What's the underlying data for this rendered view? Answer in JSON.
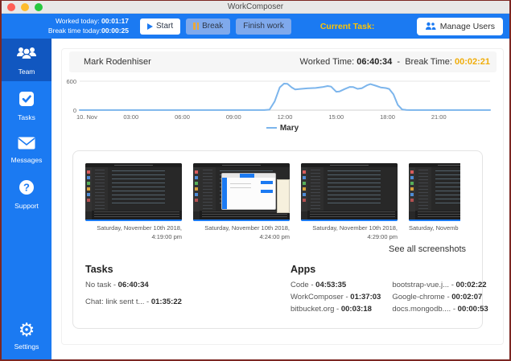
{
  "window": {
    "title": "WorkComposer"
  },
  "toolbar": {
    "worked_today_label": "Worked today:",
    "worked_today_value": "00:01:17",
    "break_today_label": "Break time today:",
    "break_today_value": "00:00:25",
    "start_label": "Start",
    "break_label": "Break",
    "finish_label": "Finish work",
    "current_task_label": "Current Task:",
    "manage_users_label": "Manage Users"
  },
  "sidebar": {
    "items": [
      {
        "label": "Team",
        "active": true
      },
      {
        "label": "Tasks",
        "active": false
      },
      {
        "label": "Messages",
        "active": false
      },
      {
        "label": "Support",
        "active": false
      }
    ],
    "settings_label": "Settings"
  },
  "user_header": {
    "name": "Mark Rodenhiser",
    "worked_label": "Worked Time:",
    "worked_value": "06:40:34",
    "dash": "-",
    "break_label": "Break Time:",
    "break_value": "00:02:21"
  },
  "chart_data": {
    "type": "line",
    "title": "",
    "xlabel": "",
    "ylabel": "",
    "ylim": [
      0,
      600
    ],
    "x_range_hours": [
      0,
      24
    ],
    "grid": "horizontal-only",
    "legend": "Mary",
    "legend_position": "bottom-center",
    "y_ticks": [
      {
        "v": 0,
        "label": "0"
      },
      {
        "v": 600,
        "label": "600"
      }
    ],
    "x_ticks": [
      {
        "hour": 0,
        "label": "10. Nov"
      },
      {
        "hour": 3,
        "label": "03:00"
      },
      {
        "hour": 6,
        "label": "06:00"
      },
      {
        "hour": 9,
        "label": "09:00"
      },
      {
        "hour": 12,
        "label": "12:00"
      },
      {
        "hour": 15,
        "label": "15:00"
      },
      {
        "hour": 18,
        "label": "18:00"
      },
      {
        "hour": 21,
        "label": "21:00"
      }
    ],
    "series": [
      {
        "name": "Mary",
        "color": "#7cb5ec",
        "points": [
          [
            0,
            2
          ],
          [
            1,
            2
          ],
          [
            2,
            2
          ],
          [
            3,
            2
          ],
          [
            4,
            2
          ],
          [
            5,
            2
          ],
          [
            6,
            2
          ],
          [
            7,
            2
          ],
          [
            8,
            2
          ],
          [
            9,
            2
          ],
          [
            10,
            2
          ],
          [
            10.8,
            2
          ],
          [
            11.1,
            10
          ],
          [
            11.4,
            180
          ],
          [
            11.7,
            470
          ],
          [
            11.95,
            550
          ],
          [
            12.15,
            545
          ],
          [
            12.4,
            470
          ],
          [
            12.6,
            428
          ],
          [
            12.9,
            440
          ],
          [
            13.3,
            452
          ],
          [
            13.8,
            460
          ],
          [
            14.2,
            478
          ],
          [
            14.5,
            500
          ],
          [
            14.7,
            488
          ],
          [
            15.0,
            382
          ],
          [
            15.2,
            388
          ],
          [
            15.5,
            438
          ],
          [
            15.8,
            482
          ],
          [
            16.0,
            478
          ],
          [
            16.25,
            442
          ],
          [
            16.5,
            455
          ],
          [
            16.8,
            515
          ],
          [
            17.0,
            540
          ],
          [
            17.3,
            508
          ],
          [
            17.6,
            472
          ],
          [
            17.9,
            458
          ],
          [
            18.1,
            440
          ],
          [
            18.35,
            330
          ],
          [
            18.6,
            110
          ],
          [
            18.85,
            15
          ],
          [
            19.1,
            3
          ],
          [
            20,
            2
          ],
          [
            21,
            2
          ],
          [
            22,
            2
          ],
          [
            23,
            2
          ],
          [
            24,
            2
          ]
        ]
      }
    ]
  },
  "screenshots": {
    "items": [
      {
        "caption": "Saturday, November 10th 2018, 4:19:00 pm"
      },
      {
        "caption": "Saturday, November 10th 2018, 4:24:00 pm"
      },
      {
        "caption": "Saturday, November 10th 2018, 4:29:00 pm"
      },
      {
        "caption": "Saturday, Novemb"
      }
    ],
    "see_all_label": "See all screenshots"
  },
  "tasks": {
    "heading": "Tasks",
    "dash": "-",
    "items": [
      {
        "name": "No task",
        "time": "06:40:34"
      },
      {
        "name": "Chat: link sent t...",
        "time": "01:35:22"
      }
    ]
  },
  "apps": {
    "heading": "Apps",
    "dash": "-",
    "col1": [
      {
        "name": "Code",
        "time": "04:53:35"
      },
      {
        "name": "WorkComposer",
        "time": "01:37:03"
      },
      {
        "name": "bitbucket.org",
        "time": "00:03:18"
      }
    ],
    "col2": [
      {
        "name": "bootstrap-vue.j...",
        "time": "00:02:22"
      },
      {
        "name": "Google-chrome",
        "time": "00:02:07"
      },
      {
        "name": "docs.mongodb....",
        "time": "00:00:53"
      }
    ]
  },
  "colors": {
    "brand_blue": "#1b7af2",
    "sidebar_active_blue": "#1157c0",
    "accent_gold": "#f0ad0a",
    "toolbar_gold": "#ffc400",
    "chart_line": "#7cb5ec",
    "light_button_blue": "#7fa9ec"
  },
  "icons": {
    "traffic": [
      "close-icon",
      "minimize-icon",
      "zoom-icon"
    ],
    "toolbar": [
      "play-icon",
      "pause-icon",
      "users-icon"
    ],
    "sidebar": [
      "team-icon",
      "tasks-check-icon",
      "messages-envelope-icon",
      "support-question-icon",
      "settings-gear-icon"
    ]
  }
}
